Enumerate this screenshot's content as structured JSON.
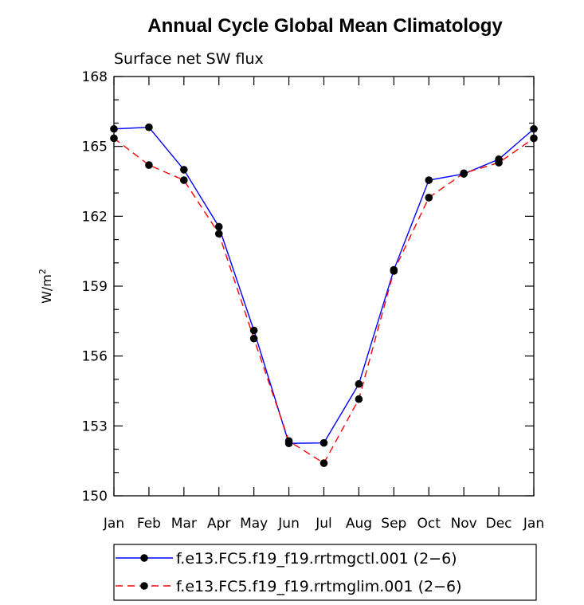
{
  "chart_data": {
    "type": "line",
    "title": "Annual Cycle Global Mean Climatology",
    "subtitle": "Surface net SW flux",
    "ylabel": "W/m",
    "ylabel_sup": "2",
    "xlabel": "",
    "categories": [
      "Jan",
      "Feb",
      "Mar",
      "Apr",
      "May",
      "Jun",
      "Jul",
      "Aug",
      "Sep",
      "Oct",
      "Nov",
      "Dec",
      "Jan"
    ],
    "ylim": [
      150,
      168
    ],
    "yticks": [
      150,
      153,
      156,
      159,
      162,
      165,
      168
    ],
    "ytick_labels": [
      "150",
      "153",
      "156",
      "159",
      "162",
      "165",
      "168"
    ],
    "grid": false,
    "legend_position": "bottom",
    "series": [
      {
        "name": "f.e13.FC5.f19_f19.rrtmgctl.001 (2−6)",
        "color": "#0000ff",
        "dash": "solid",
        "marker": "filled-circle",
        "values": [
          165.75,
          165.82,
          164.0,
          161.55,
          157.1,
          152.25,
          152.27,
          154.8,
          159.7,
          163.55,
          163.82,
          164.45,
          165.75
        ]
      },
      {
        "name": "f.e13.FC5.f19_f19.rrtmglim.001 (2−6)",
        "color": "#ff0000",
        "dash": "dashed",
        "marker": "filled-circle",
        "values": [
          165.35,
          164.2,
          163.55,
          161.25,
          156.75,
          152.35,
          151.4,
          154.15,
          159.65,
          162.8,
          163.85,
          164.3,
          165.35
        ]
      }
    ]
  }
}
